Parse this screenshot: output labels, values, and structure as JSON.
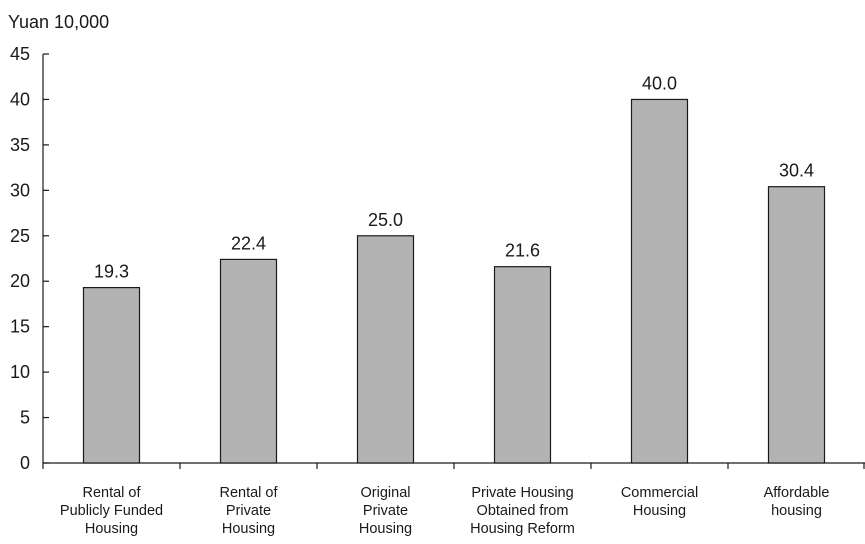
{
  "chart_data": {
    "type": "bar",
    "unit_label": "Yuan 10,000",
    "categories": [
      [
        "Rental of",
        "Publicly Funded",
        "Housing"
      ],
      [
        "Rental of",
        "Private",
        "Housing"
      ],
      [
        "Original",
        "Private",
        "Housing"
      ],
      [
        "Private Housing",
        "Obtained from",
        "Housing Reform"
      ],
      [
        "Commercial",
        "Housing"
      ],
      [
        "Affordable",
        "housing"
      ]
    ],
    "values": [
      19.3,
      22.4,
      25.0,
      21.6,
      40.0,
      30.4
    ],
    "value_labels": [
      "19.3",
      "22.4",
      "25.0",
      "21.6",
      "40.0",
      "30.4"
    ],
    "ylim": [
      0,
      45
    ],
    "yticks": [
      0,
      5,
      10,
      15,
      20,
      25,
      30,
      35,
      40,
      45
    ],
    "bar_color": "#b3b3b3",
    "grid": false,
    "legend": "none"
  }
}
